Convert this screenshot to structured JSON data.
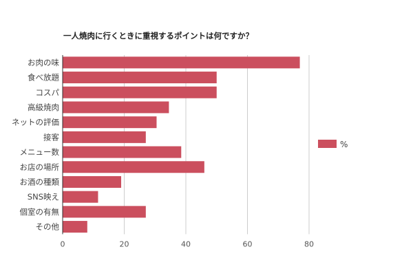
{
  "chart_data": {
    "type": "bar",
    "orientation": "horizontal",
    "title": "一人焼肉に行くときに重視するポイントは何ですか？",
    "categories": [
      "お肉の味",
      "食べ放題",
      "コスパ",
      "高級焼肉",
      "ネットの評価",
      "接客",
      "メニュー数",
      "お店の場所",
      "お酒の種類",
      "SNS映え",
      "個室の有無",
      "その他"
    ],
    "series": [
      {
        "name": "%",
        "values": [
          77,
          50,
          50,
          34.5,
          30.5,
          27,
          38.5,
          46,
          19,
          11.5,
          27,
          8
        ]
      }
    ],
    "xlim": [
      0,
      80
    ],
    "xticks": [
      0,
      20,
      40,
      60,
      80
    ],
    "xlabel": "",
    "ylabel": "",
    "grid": true,
    "legend_position": "right",
    "colors": {
      "bar": "#cb4f5e",
      "grid": "#cccccc",
      "axis": "#333333"
    }
  }
}
